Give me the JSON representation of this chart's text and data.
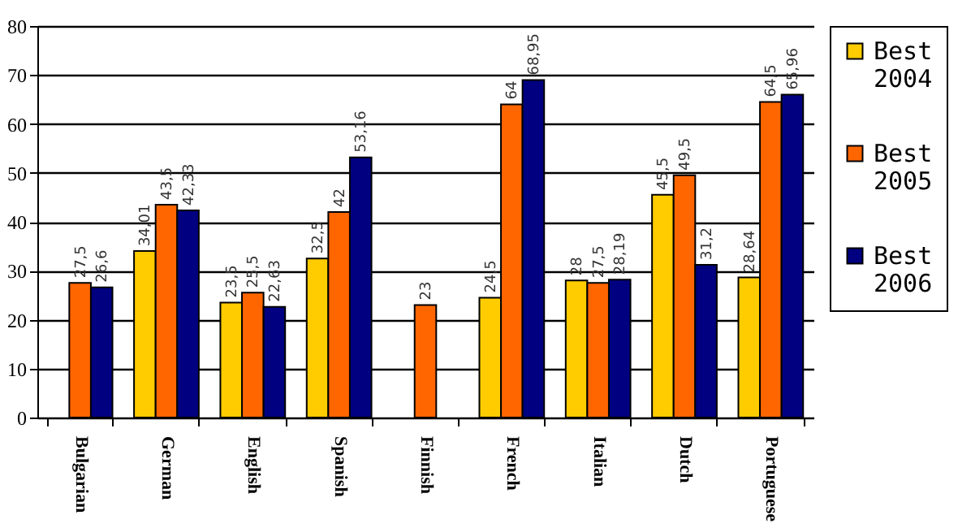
{
  "chart_data": {
    "type": "bar",
    "categories": [
      "Bulgarian",
      "German",
      "English",
      "Spanish",
      "Finnish",
      "French",
      "Italian",
      "Dutch",
      "Portuguese"
    ],
    "series": [
      {
        "name": "Best 2004",
        "color": "#ffcc00",
        "values": [
          null,
          34.01,
          23.5,
          32.5,
          null,
          24.5,
          28,
          45.5,
          28.64
        ],
        "value_labels": [
          null,
          "34,01",
          "23,5",
          "32,5",
          null,
          "24,5",
          "28",
          "45,5",
          "28,64"
        ]
      },
      {
        "name": "Best 2005",
        "color": "#ff6600",
        "values": [
          27.5,
          43.5,
          25.5,
          42,
          23,
          64,
          27.5,
          49.5,
          64.5
        ],
        "value_labels": [
          "27,5",
          "43,5",
          "25,5",
          "42",
          "23",
          "64",
          "27,5",
          "49,5",
          "64,5"
        ]
      },
      {
        "name": "Best 2006",
        "color": "#000080",
        "values": [
          26.6,
          42.33,
          22.63,
          53.16,
          null,
          68.95,
          28.19,
          31.2,
          65.96
        ],
        "value_labels": [
          "26,6",
          "42,33",
          "22,63",
          "53,16",
          null,
          "68,95",
          "28,19",
          "31,2",
          "65,96"
        ]
      }
    ],
    "ylim": [
      0,
      80
    ],
    "yticks": [
      0,
      10,
      20,
      30,
      40,
      50,
      60,
      70,
      80
    ],
    "grid": "y",
    "legend": "right"
  }
}
